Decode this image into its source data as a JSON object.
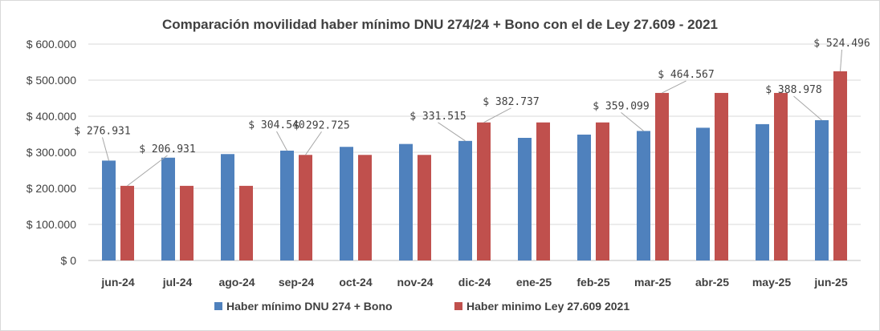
{
  "chart_data": {
    "type": "bar",
    "title": "Comparación  movilidad haber mínimo DNU 274/24 + Bono con el de Ley 27.609 - 2021",
    "categories": [
      "jun-24",
      "jul-24",
      "ago-24",
      "sep-24",
      "oct-24",
      "nov-24",
      "dic-24",
      "ene-25",
      "feb-25",
      "mar-25",
      "abr-25",
      "may-25",
      "jun-25"
    ],
    "series": [
      {
        "name": "Haber mínimo DNU 274 + Bono",
        "color": "#4f81bd",
        "values": [
          276931,
          285000,
          295000,
          304540,
          315000,
          323000,
          331515,
          340000,
          349000,
          359099,
          368000,
          378000,
          388978
        ],
        "labels": [
          "$ 276.931",
          null,
          null,
          "$ 304.540",
          null,
          null,
          "$ 331.515",
          null,
          null,
          "$ 359.099",
          null,
          null,
          "$ 388.978"
        ]
      },
      {
        "name": "Haber minimo Ley 27.609 2021",
        "color": "#c0504d",
        "values": [
          206931,
          206931,
          206931,
          292725,
          292725,
          292725,
          382737,
          382737,
          382737,
          464567,
          464567,
          464567,
          524496
        ],
        "labels": [
          "$ 206.931",
          null,
          null,
          "$ 292.725",
          null,
          null,
          "$ 382.737",
          null,
          null,
          "$ 464.567",
          null,
          null,
          "$ 524.496"
        ]
      }
    ],
    "ylim": [
      0,
      600000
    ],
    "yticks": [
      0,
      100000,
      200000,
      300000,
      400000,
      500000,
      600000
    ],
    "ytick_labels": [
      "$ 0",
      "$ 100.000",
      "$ 200.000",
      "$ 300.000",
      "$ 400.000",
      "$ 500.000",
      "$ 600.000"
    ],
    "grid": true,
    "legend": "bottom"
  }
}
